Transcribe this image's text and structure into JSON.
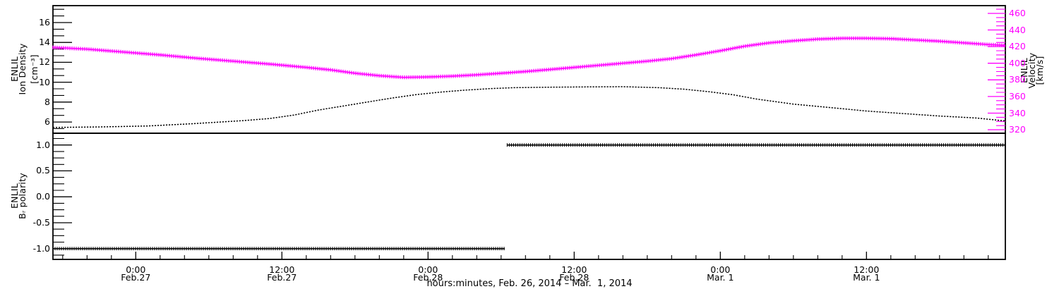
{
  "chart_data": [
    {
      "type": "line",
      "panel": "top",
      "x_range": [
        17.2,
        95.4
      ],
      "x_unit": "hours since 2014-02-26 00:00",
      "yaxis_left": {
        "title_lines": [
          "ENLIL",
          "Ion Density",
          "[cm⁻³]"
        ],
        "range": [
          4.87,
          17.7
        ],
        "major_ticks": [
          6,
          8,
          10,
          12,
          14,
          16
        ],
        "major_tick_labels": [
          "6",
          "8",
          "10",
          "12",
          "14",
          "16"
        ],
        "minor_step": 0.6667,
        "color": "#000000"
      },
      "yaxis_right": {
        "title_lines": [
          "ENLIL",
          "Velocity",
          "[km/s]"
        ],
        "range": [
          315.8,
          469.3
        ],
        "major_ticks": [
          320,
          340,
          360,
          380,
          400,
          420,
          440,
          460
        ],
        "major_tick_labels": [
          "320",
          "340",
          "360",
          "380",
          "400",
          "420",
          "440",
          "460"
        ],
        "minor_step": 5,
        "color": "#ff00ff",
        "title_color": "#000000"
      },
      "series": [
        {
          "name": "ion-density",
          "color": "#000000",
          "axis": "left",
          "marker": "dot",
          "points": [
            [
              17.2,
              5.45
            ],
            [
              21,
              5.5
            ],
            [
              25,
              5.6
            ],
            [
              29,
              5.85
            ],
            [
              33,
              6.15
            ],
            [
              35,
              6.35
            ],
            [
              37,
              6.7
            ],
            [
              39,
              7.2
            ],
            [
              41,
              7.6
            ],
            [
              43,
              8.0
            ],
            [
              45,
              8.4
            ],
            [
              47,
              8.75
            ],
            [
              49,
              9.0
            ],
            [
              51,
              9.2
            ],
            [
              53,
              9.35
            ],
            [
              55,
              9.45
            ],
            [
              58,
              9.5
            ],
            [
              61,
              9.53
            ],
            [
              64,
              9.55
            ],
            [
              67,
              9.45
            ],
            [
              69,
              9.3
            ],
            [
              71,
              9.05
            ],
            [
              73,
              8.75
            ],
            [
              75,
              8.3
            ],
            [
              78,
              7.8
            ],
            [
              81,
              7.45
            ],
            [
              84,
              7.1
            ],
            [
              87,
              6.85
            ],
            [
              90,
              6.6
            ],
            [
              93,
              6.4
            ],
            [
              95.4,
              6.1
            ]
          ]
        },
        {
          "name": "velocity",
          "color": "#ff00ff",
          "axis": "right",
          "marker": "plus",
          "points": [
            [
              17.2,
              419
            ],
            [
              20,
              417
            ],
            [
              23,
              413.5
            ],
            [
              26,
              410
            ],
            [
              29,
              406
            ],
            [
              32,
              402.5
            ],
            [
              35,
              399
            ],
            [
              38,
              395
            ],
            [
              40,
              392
            ],
            [
              42,
              388
            ],
            [
              44,
              385
            ],
            [
              46,
              383
            ],
            [
              48,
              383.5
            ],
            [
              50,
              384.5
            ],
            [
              52,
              386
            ],
            [
              54,
              388
            ],
            [
              56,
              390
            ],
            [
              58,
              392.5
            ],
            [
              60,
              395
            ],
            [
              62,
              397.5
            ],
            [
              64,
              400
            ],
            [
              66,
              402.5
            ],
            [
              68,
              405.5
            ],
            [
              70,
              410
            ],
            [
              72,
              415
            ],
            [
              74,
              420.5
            ],
            [
              76,
              424.5
            ],
            [
              78,
              427
            ],
            [
              80,
              429
            ],
            [
              82,
              430
            ],
            [
              84,
              430
            ],
            [
              86,
              429.5
            ],
            [
              88,
              428
            ],
            [
              90,
              426.5
            ],
            [
              92,
              424.5
            ],
            [
              94,
              422.5
            ],
            [
              95.4,
              421.5
            ]
          ]
        }
      ]
    },
    {
      "type": "line",
      "panel": "bottom",
      "x_range": [
        17.2,
        95.4
      ],
      "yaxis_left": {
        "title_lines": [
          "ENLIL",
          "Bᵣ polarity"
        ],
        "range": [
          -1.208,
          1.227
        ],
        "major_ticks": [
          -1.0,
          -0.5,
          0.0,
          0.5,
          1.0
        ],
        "major_tick_labels": [
          "-1.0",
          "-0.5",
          "0.0",
          "0.5",
          "1.0"
        ],
        "minor_step": 0.125,
        "color": "#000000"
      },
      "series": [
        {
          "name": "br-polarity",
          "color": "#000000",
          "marker": "plus",
          "segments": [
            {
              "value": -1,
              "t": [
                17.2,
                54.3
              ]
            },
            {
              "value": 1,
              "t": [
                54.5,
                95.4
              ]
            }
          ]
        }
      ],
      "x_axis": {
        "major_ticks": [
          24,
          36,
          48,
          60,
          72,
          84
        ],
        "major_tick_labels": [
          [
            "0:00",
            "Feb.27"
          ],
          [
            "12:00",
            "Feb.27"
          ],
          [
            "0:00",
            "Feb.28"
          ],
          [
            "12:00",
            "Feb.28"
          ],
          [
            "0:00",
            "Mar. 1"
          ],
          [
            "12:00",
            "Mar. 1"
          ]
        ],
        "minor_step": 2,
        "title": "hours:minutes, Feb. 26, 2014 – Mar.  1, 2014"
      }
    }
  ]
}
